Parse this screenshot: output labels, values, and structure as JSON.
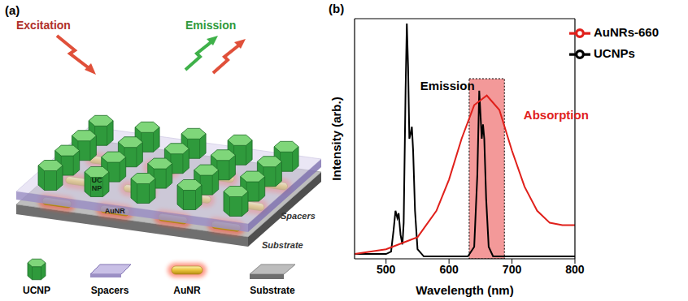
{
  "diagram": {
    "panel_label": "(a)",
    "excitation": "Excitation",
    "emission": "Emission",
    "layer_labels": {
      "ucnp": "UC NP",
      "spacers": "Spacers",
      "aunr": "AuNR",
      "substrate": "Substrate"
    },
    "legend": [
      "UCNP",
      "Spacers",
      "AuNR",
      "Substrate"
    ]
  },
  "chart_data": {
    "panel_label": "(b)",
    "type": "line",
    "x_label": "Wavelength (nm)",
    "y_label": "Intensity (arb.)",
    "xlim": [
      450,
      800
    ],
    "xticks": [
      500,
      600,
      700,
      800
    ],
    "ylim": [
      0,
      1
    ],
    "tick_labels": "x",
    "legend": "upper right",
    "highlight": {
      "x": [
        632,
        688
      ],
      "y": [
        0,
        0.75
      ]
    },
    "annotations": [
      {
        "text": "Emission",
        "x": 548,
        "y": 0.72,
        "color": "#000000"
      },
      {
        "text": "Absorption",
        "x": 712,
        "y": 0.6,
        "color": "#e0201b"
      }
    ],
    "series": [
      {
        "name": "UCNPs",
        "color": "#000000",
        "x": [
          450,
          500,
          508,
          512,
          515,
          518,
          520,
          523,
          526,
          528,
          531,
          533,
          535,
          537,
          539,
          541,
          543,
          546,
          550,
          560,
          600,
          630,
          640,
          645,
          648,
          650,
          652,
          654,
          656,
          659,
          663,
          670,
          700,
          800
        ],
        "values": [
          0.02,
          0.02,
          0.03,
          0.12,
          0.2,
          0.17,
          0.19,
          0.1,
          0.06,
          0.15,
          0.7,
          0.98,
          0.8,
          0.5,
          0.52,
          0.55,
          0.45,
          0.2,
          0.04,
          0.01,
          0.01,
          0.01,
          0.05,
          0.35,
          0.7,
          0.6,
          0.5,
          0.56,
          0.5,
          0.25,
          0.05,
          0.01,
          0.01,
          0.01
        ]
      },
      {
        "name": "AuNRs-660",
        "color": "#e0201b",
        "x": [
          450,
          500,
          550,
          580,
          600,
          620,
          640,
          660,
          680,
          700,
          720,
          740,
          760,
          780,
          800
        ],
        "values": [
          0.02,
          0.04,
          0.09,
          0.2,
          0.33,
          0.5,
          0.64,
          0.68,
          0.62,
          0.45,
          0.3,
          0.2,
          0.15,
          0.14,
          0.14
        ]
      }
    ]
  }
}
